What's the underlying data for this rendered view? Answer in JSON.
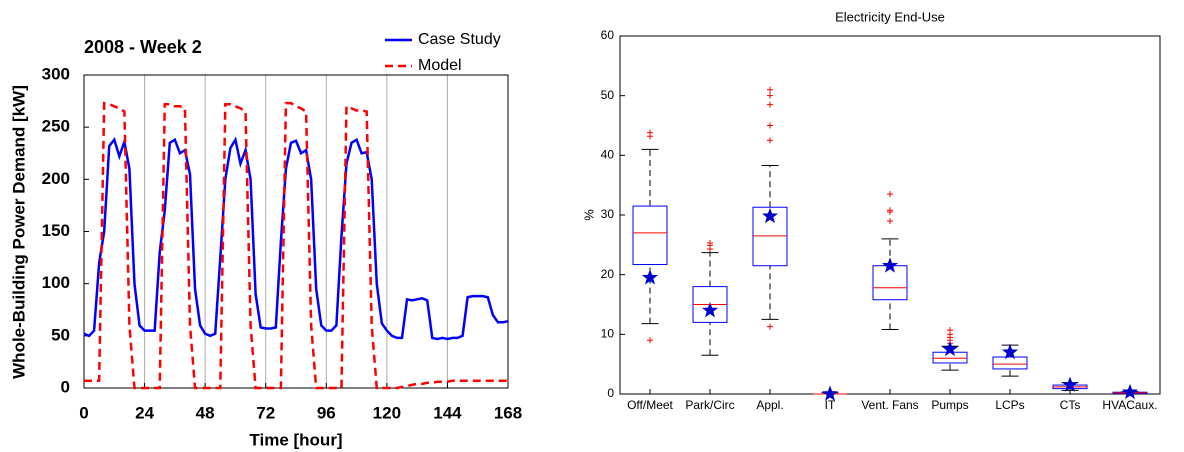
{
  "chart_data": [
    {
      "type": "line",
      "title": "2008 - Week 2",
      "xlabel": "Time [hour]",
      "ylabel": "Whole-Building Power Demand [kW]",
      "x": [
        0,
        2,
        4,
        6,
        8,
        10,
        12,
        14,
        16,
        18,
        20,
        22,
        24,
        26,
        28,
        30,
        32,
        34,
        36,
        38,
        40,
        42,
        44,
        46,
        48,
        50,
        52,
        54,
        56,
        58,
        60,
        62,
        64,
        66,
        68,
        70,
        72,
        74,
        76,
        78,
        80,
        82,
        84,
        86,
        88,
        90,
        92,
        94,
        96,
        98,
        100,
        102,
        104,
        106,
        108,
        110,
        112,
        114,
        116,
        118,
        120,
        122,
        124,
        126,
        128,
        130,
        132,
        134,
        136,
        138,
        140,
        142,
        144,
        146,
        148,
        150,
        152,
        154,
        156,
        158,
        160,
        162,
        164,
        166,
        168
      ],
      "series": [
        {
          "name": "Case Study",
          "color": "#0000ff",
          "dash": false,
          "values": [
            52,
            50,
            55,
            120,
            150,
            232,
            238,
            222,
            236,
            210,
            100,
            60,
            55,
            55,
            55,
            130,
            170,
            235,
            238,
            225,
            228,
            205,
            95,
            60,
            52,
            50,
            52,
            125,
            200,
            230,
            238,
            215,
            228,
            200,
            90,
            58,
            57,
            57,
            58,
            140,
            210,
            235,
            237,
            225,
            228,
            200,
            95,
            60,
            55,
            55,
            60,
            145,
            215,
            235,
            238,
            225,
            226,
            200,
            100,
            62,
            55,
            50,
            48,
            48,
            85,
            84,
            85,
            86,
            84,
            48,
            47,
            48,
            47,
            48,
            48,
            50,
            87,
            88,
            88,
            88,
            87,
            70,
            63,
            63,
            64
          ]
        },
        {
          "name": "Model",
          "color": "#ff0000",
          "dash": true,
          "values": [
            7,
            7,
            7,
            7,
            273,
            272,
            270,
            268,
            265,
            60,
            0,
            0,
            0,
            0,
            0,
            0,
            272,
            272,
            270,
            270,
            268,
            60,
            0,
            0,
            0,
            0,
            0,
            0,
            272,
            272,
            270,
            268,
            265,
            60,
            0,
            0,
            0,
            0,
            0,
            0,
            273,
            273,
            270,
            268,
            265,
            60,
            0,
            0,
            0,
            0,
            0,
            0,
            270,
            268,
            266,
            266,
            265,
            60,
            0,
            0,
            0,
            0,
            0,
            1,
            2,
            3,
            4,
            4,
            5,
            5,
            6,
            6,
            6,
            7,
            7,
            7,
            7,
            7,
            7,
            7,
            7,
            7,
            7,
            7,
            7
          ]
        }
      ],
      "xlim": [
        0,
        168
      ],
      "xticks": [
        0,
        24,
        48,
        72,
        96,
        120,
        144,
        168
      ],
      "ylim": [
        0,
        300
      ],
      "yticks": [
        0,
        50,
        100,
        150,
        200,
        250,
        300
      ],
      "xgrid": true
    },
    {
      "type": "box",
      "title": "Electricity End-Use",
      "ylabel": "%",
      "categories": [
        "Off/Meet",
        "Park/Circ",
        "Appl.",
        "IT",
        "Vent. Fans",
        "Pumps",
        "LCPs",
        "CTs",
        "HVACaux."
      ],
      "whisker_low": [
        11.8,
        6.5,
        12.5,
        0,
        10.8,
        4,
        3,
        0.6,
        0
      ],
      "q1": [
        21.7,
        12,
        21.5,
        0,
        15.8,
        5.2,
        4.2,
        0.9,
        0.1
      ],
      "median": [
        27,
        15,
        26.5,
        0,
        17.8,
        6,
        5,
        1.2,
        0.2
      ],
      "q3": [
        31.5,
        18,
        31.3,
        0,
        21.5,
        7,
        6.2,
        1.5,
        0.3
      ],
      "whisker_high": [
        41,
        23.7,
        38.3,
        0.2,
        26,
        8,
        8.2,
        1.9,
        0.4
      ],
      "outliers": [
        [
          9,
          43.2,
          43.8
        ],
        [
          24.3,
          24.9,
          25.3
        ],
        [
          11.3,
          42.5,
          45,
          48.5,
          50,
          51
        ],
        [],
        [
          29,
          30.5,
          30.8,
          33.5
        ],
        [
          8.5,
          9,
          9.5,
          10,
          10.7
        ],
        [],
        [],
        []
      ],
      "markers": [
        19.5,
        14,
        29.8,
        0,
        21.5,
        7.5,
        7,
        1.5,
        0.3
      ],
      "box_color": "#0000ff",
      "median_color": "#ff0000",
      "outlier_color": "#ff0000",
      "marker_color": "#0000cc",
      "ylim": [
        0,
        60
      ],
      "yticks": [
        0,
        10,
        20,
        30,
        40,
        50,
        60
      ]
    }
  ]
}
